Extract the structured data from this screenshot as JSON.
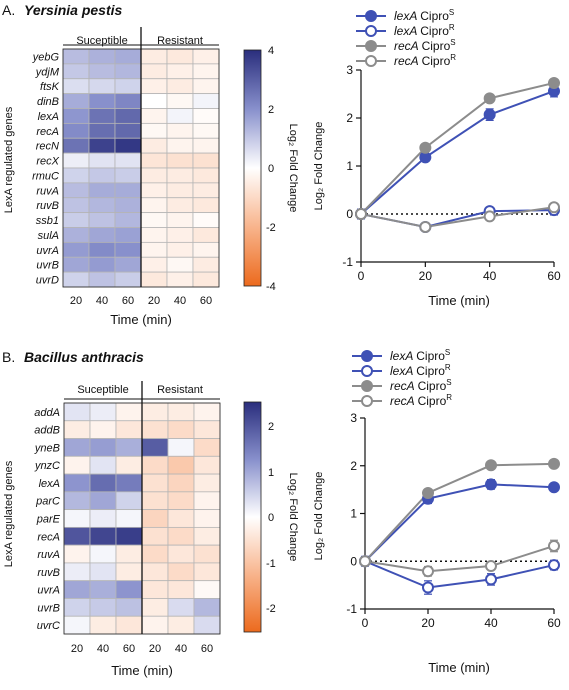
{
  "panels": [
    {
      "letter": "A.",
      "organism": "Yersinia pestis",
      "group_susceptible": "Suceptible",
      "group_resistant": "Resistant",
      "row_axis_label": "LexA regulated genes",
      "x_axis_label": "Time (min)",
      "x_ticks": [
        "20",
        "40",
        "60",
        "20",
        "40",
        "60"
      ],
      "colorbar_label": "Log₂ Fold Change",
      "colorbar_ticks": [
        "4",
        "2",
        "0",
        "-2",
        "-4"
      ],
      "line_ylabel": "Log₂ Fold Change",
      "line_xlabel": "Time (min)"
    },
    {
      "letter": "B.",
      "organism": "Bacillus anthracis",
      "group_susceptible": "Suceptible",
      "group_resistant": "Resistant",
      "row_axis_label": "LexA regulated genes",
      "x_axis_label": "Time (min)",
      "x_ticks": [
        "20",
        "40",
        "60",
        "20",
        "40",
        "60"
      ],
      "colorbar_label": "Log₂ Fold Change",
      "colorbar_ticks": [
        "2",
        "1",
        "0",
        "-1",
        "-2"
      ],
      "line_ylabel": "Log₂ Fold Change",
      "line_xlabel": "Time (min)"
    }
  ],
  "legend": [
    {
      "gene": "lexA",
      "cond": "Cipro",
      "sup": "S",
      "color": "#3f51b5",
      "filled": true
    },
    {
      "gene": "lexA",
      "cond": "Cipro",
      "sup": "R",
      "color": "#3f51b5",
      "filled": false
    },
    {
      "gene": "recA",
      "cond": "Cipro",
      "sup": "S",
      "color": "#8c8c8c",
      "filled": true
    },
    {
      "gene": "recA",
      "cond": "Cipro",
      "sup": "R",
      "color": "#8c8c8c",
      "filled": false
    }
  ],
  "chart_data": [
    {
      "type": "heatmap",
      "title": "Yersinia pestis",
      "rows": [
        "yebG",
        "ydjM",
        "ftsK",
        "dinB",
        "lexA",
        "recA",
        "recN",
        "recX",
        "rmuC",
        "ruvA",
        "ruvB",
        "ssb1",
        "sulA",
        "uvrA",
        "uvrB",
        "uvrD"
      ],
      "columns": [
        "Suceptible 20",
        "Suceptible 40",
        "Suceptible 60",
        "Resistant 20",
        "Resistant 40",
        "Resistant 60"
      ],
      "values": [
        [
          1.2,
          1.4,
          1.5,
          -0.5,
          -0.6,
          -0.4
        ],
        [
          1.0,
          1.2,
          1.3,
          -0.5,
          -0.4,
          -0.3
        ],
        [
          0.6,
          0.7,
          0.8,
          -0.4,
          -0.5,
          -0.3
        ],
        [
          1.5,
          2.0,
          2.2,
          0.0,
          -0.2,
          0.2
        ],
        [
          1.9,
          2.6,
          2.8,
          -0.3,
          0.2,
          -0.1
        ],
        [
          2.1,
          2.7,
          2.8,
          -0.2,
          -0.3,
          -0.2
        ],
        [
          2.6,
          3.6,
          3.8,
          -0.5,
          -0.3,
          -0.3
        ],
        [
          0.3,
          0.5,
          0.5,
          -0.7,
          -0.8,
          -0.8
        ],
        [
          0.8,
          1.0,
          0.9,
          -0.5,
          -0.5,
          -0.6
        ],
        [
          1.2,
          1.5,
          1.5,
          -0.4,
          -0.5,
          -0.5
        ],
        [
          1.1,
          1.3,
          1.4,
          -0.3,
          -0.5,
          -0.6
        ],
        [
          0.9,
          1.1,
          1.3,
          -0.2,
          -0.3,
          -0.1
        ],
        [
          1.4,
          1.6,
          1.7,
          -0.3,
          -0.4,
          -0.6
        ],
        [
          1.8,
          2.1,
          2.0,
          -0.3,
          -0.4,
          -0.3
        ],
        [
          1.6,
          1.8,
          1.6,
          -0.4,
          -0.2,
          -0.5
        ],
        [
          0.8,
          1.1,
          0.9,
          -0.6,
          -0.4,
          -0.6
        ]
      ],
      "zlim": [
        -4,
        4
      ],
      "xlabel": "Time (min)",
      "ylabel": "LexA regulated genes",
      "colorbar_label": "Log₂ Fold Change"
    },
    {
      "type": "line",
      "x": [
        0,
        20,
        40,
        60
      ],
      "xlim": [
        0,
        60
      ],
      "ylim": [
        -1,
        3
      ],
      "xticks": [
        0,
        20,
        40,
        60
      ],
      "yticks": [
        -1,
        0,
        1,
        2,
        3
      ],
      "xlabel": "Time (min)",
      "ylabel": "Log₂ Fold Change",
      "reference_line": 0,
      "series": [
        {
          "name": "lexA CiproS",
          "values": [
            0,
            1.18,
            2.07,
            2.56
          ],
          "err": [
            0.1,
            0.08,
            0.12,
            0.12
          ],
          "color": "#3f51b5",
          "filled": true
        },
        {
          "name": "lexA CiproR",
          "values": [
            0,
            -0.27,
            0.06,
            0.08
          ],
          "err": [
            0.1,
            0.05,
            0.05,
            0.1
          ],
          "color": "#3f51b5",
          "filled": false
        },
        {
          "name": "recA CiproS",
          "values": [
            0,
            1.38,
            2.41,
            2.73
          ],
          "err": [
            0.06,
            0.05,
            0.06,
            0.05
          ],
          "color": "#8c8c8c",
          "filled": true
        },
        {
          "name": "recA CiproR",
          "values": [
            0,
            -0.27,
            -0.05,
            0.14
          ],
          "err": [
            0.06,
            0.05,
            0.05,
            0.06
          ],
          "color": "#8c8c8c",
          "filled": false
        }
      ],
      "legend_position": "top-left"
    },
    {
      "type": "heatmap",
      "title": "Bacillus anthracis",
      "rows": [
        "addA",
        "addB",
        "yneB",
        "ynzC",
        "lexA",
        "parC",
        "parE",
        "recA",
        "ruvA",
        "ruvB",
        "uvrA",
        "uvrB",
        "uvrC"
      ],
      "columns": [
        "Suceptible 20",
        "Suceptible 40",
        "Suceptible 60",
        "Resistant 20",
        "Resistant 40",
        "Resistant 60"
      ],
      "values": [
        [
          0.3,
          0.2,
          -0.2,
          -0.3,
          -0.3,
          -0.2
        ],
        [
          -0.3,
          -0.2,
          -0.4,
          -0.5,
          -0.6,
          -0.4
        ],
        [
          1.0,
          1.1,
          0.9,
          1.9,
          0.1,
          -0.6
        ],
        [
          -0.2,
          0.3,
          -0.3,
          -0.6,
          -0.9,
          -0.4
        ],
        [
          1.2,
          1.7,
          1.5,
          -0.5,
          -0.7,
          -0.3
        ],
        [
          0.8,
          1.0,
          0.5,
          -0.5,
          -0.6,
          -0.2
        ],
        [
          0.1,
          0.2,
          0.1,
          -0.7,
          -0.4,
          -0.2
        ],
        [
          2.0,
          2.2,
          2.3,
          -0.5,
          -0.6,
          -0.3
        ],
        [
          -0.2,
          0.1,
          -0.3,
          -0.6,
          -0.4,
          -0.5
        ],
        [
          0.2,
          0.3,
          -0.3,
          -0.4,
          -0.6,
          -0.4
        ],
        [
          1.0,
          0.9,
          1.2,
          -0.4,
          -0.4,
          -0.1
        ],
        [
          0.5,
          0.6,
          0.7,
          -0.3,
          0.4,
          0.8
        ],
        [
          0.1,
          -0.3,
          -0.4,
          -0.2,
          -0.3,
          0.4
        ]
      ],
      "zlim": [
        -2.5,
        2.5
      ],
      "xlabel": "Time (min)",
      "ylabel": "LexA regulated genes",
      "colorbar_label": "Log₂ Fold Change"
    },
    {
      "type": "line",
      "x": [
        0,
        20,
        40,
        60
      ],
      "xlim": [
        0,
        60
      ],
      "ylim": [
        -1,
        3
      ],
      "xticks": [
        0,
        20,
        40,
        60
      ],
      "yticks": [
        -1,
        0,
        1,
        2,
        3
      ],
      "xlabel": "Time (min)",
      "ylabel": "Log₂ Fold Change",
      "reference_line": 0,
      "series": [
        {
          "name": "lexA CiproS",
          "values": [
            0,
            1.31,
            1.61,
            1.55
          ],
          "err": [
            0.1,
            0.1,
            0.1,
            0.05
          ],
          "color": "#3f51b5",
          "filled": true
        },
        {
          "name": "lexA CiproR",
          "values": [
            0,
            -0.55,
            -0.38,
            -0.08
          ],
          "err": [
            0.1,
            0.14,
            0.12,
            0.1
          ],
          "color": "#3f51b5",
          "filled": false
        },
        {
          "name": "recA CiproS",
          "values": [
            0,
            1.43,
            2.01,
            2.04
          ],
          "err": [
            0.06,
            0.05,
            0.04,
            0.04
          ],
          "color": "#8c8c8c",
          "filled": true
        },
        {
          "name": "recA CiproR",
          "values": [
            0,
            -0.21,
            -0.1,
            0.32
          ],
          "err": [
            0.06,
            0.1,
            0.08,
            0.12
          ],
          "color": "#8c8c8c",
          "filled": false
        }
      ],
      "legend_position": "top-left"
    }
  ]
}
